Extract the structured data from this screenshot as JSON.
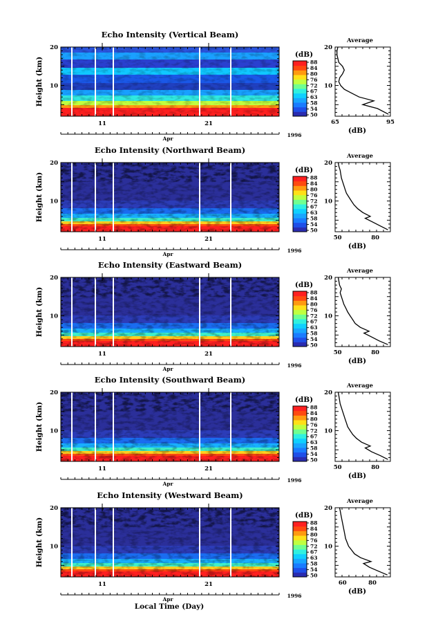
{
  "figure": {
    "xlabel": "Local Time (Day)",
    "month_label": "Apr",
    "year_label": "1996",
    "day_ticks": [
      "11",
      "21"
    ],
    "ylabel": "Height (km)",
    "height_ticks": [
      "20",
      "10"
    ],
    "colorbar_unit": "(dB)",
    "average_title": "Average",
    "average_xlabel": "(dB)"
  },
  "chart_data": [
    {
      "type": "heatmap",
      "title": "Echo Intensity (Vertical Beam)",
      "ylabel": "Height (km)",
      "xlabel": "Local Time (Day)",
      "ylim": [
        2,
        20
      ],
      "colorbar": {
        "label": "(dB)",
        "ticks": [
          50,
          54,
          58,
          63,
          67,
          72,
          76,
          80,
          84,
          88
        ]
      },
      "average_profile": {
        "type": "line",
        "title": "Average",
        "xlabel": "(dB)",
        "xticks": [
          "65",
          "95"
        ],
        "xlim": [
          65,
          95
        ],
        "height": [
          2.5,
          4,
          5,
          6,
          7,
          8,
          9,
          10,
          11,
          12,
          13,
          14,
          15,
          16,
          17,
          18,
          19,
          20
        ],
        "value": [
          94,
          88,
          80,
          86,
          78,
          74,
          70,
          68,
          67,
          67.5,
          69,
          70,
          69,
          67,
          66.5,
          66,
          66,
          66.5
        ]
      }
    },
    {
      "type": "heatmap",
      "title": "Echo Intensity (Northward Beam)",
      "ylabel": "Height (km)",
      "xlabel": "Local Time (Day)",
      "ylim": [
        2,
        20
      ],
      "colorbar": {
        "label": "(dB)",
        "ticks": [
          50,
          54,
          58,
          63,
          67,
          72,
          76,
          80,
          84,
          88
        ]
      },
      "average_profile": {
        "type": "line",
        "title": "Average",
        "xlabel": "(dB)",
        "xticks": [
          "50",
          "80"
        ],
        "xlim": [
          48,
          92
        ],
        "height": [
          2.5,
          3.5,
          4.5,
          5.5,
          6,
          7,
          8,
          9,
          10,
          11,
          12,
          13,
          14,
          15,
          16,
          17,
          18,
          19,
          20
        ],
        "value": [
          90,
          84,
          78,
          72,
          76,
          70,
          66,
          63,
          61,
          59,
          57,
          56,
          55,
          54,
          53,
          52.5,
          52,
          51,
          50.5
        ]
      }
    },
    {
      "type": "heatmap",
      "title": "Echo Intensity (Eastward Beam)",
      "ylabel": "Height (km)",
      "xlabel": "Local Time (Day)",
      "ylim": [
        2,
        20
      ],
      "colorbar": {
        "label": "(dB)",
        "ticks": [
          50,
          54,
          58,
          63,
          67,
          72,
          76,
          80,
          84,
          88
        ]
      },
      "average_profile": {
        "type": "line",
        "title": "Average",
        "xlabel": "(dB)",
        "xticks": [
          "50",
          "80"
        ],
        "xlim": [
          48,
          92
        ],
        "height": [
          2.5,
          3.5,
          4.5,
          5.5,
          6,
          7,
          8,
          9,
          10,
          11,
          12,
          13,
          14,
          15,
          16,
          17,
          18,
          19,
          20
        ],
        "value": [
          90,
          83,
          77,
          71,
          75,
          68,
          64,
          62,
          60,
          58,
          56.5,
          55,
          54,
          53,
          52,
          53,
          51.5,
          51,
          50.5
        ]
      }
    },
    {
      "type": "heatmap",
      "title": "Echo Intensity (Southward Beam)",
      "ylabel": "Height (km)",
      "xlabel": "Local Time (Day)",
      "ylim": [
        2,
        20
      ],
      "colorbar": {
        "label": "(dB)",
        "ticks": [
          50,
          54,
          58,
          63,
          67,
          72,
          76,
          80,
          84,
          88
        ]
      },
      "average_profile": {
        "type": "line",
        "title": "Average",
        "xlabel": "(dB)",
        "xticks": [
          "50",
          "80"
        ],
        "xlim": [
          48,
          92
        ],
        "height": [
          2.5,
          3.5,
          4.5,
          5.5,
          6,
          7,
          8,
          9,
          10,
          11,
          12,
          13,
          14,
          15,
          16,
          17,
          18,
          19,
          20
        ],
        "value": [
          90,
          84,
          77,
          72,
          76,
          69,
          65,
          62,
          60,
          58,
          57,
          56,
          55,
          54,
          53,
          52,
          51.5,
          51,
          50.5
        ]
      }
    },
    {
      "type": "heatmap",
      "title": "Echo Intensity (Westward Beam)",
      "ylabel": "Height (km)",
      "xlabel": "Local Time (Day)",
      "ylim": [
        2,
        20
      ],
      "colorbar": {
        "label": "(dB)",
        "ticks": [
          50,
          54,
          58,
          63,
          67,
          72,
          76,
          80,
          84,
          88
        ]
      },
      "average_profile": {
        "type": "line",
        "title": "Average",
        "xlabel": "(dB)",
        "xticks": [
          "60",
          "80"
        ],
        "xlim": [
          55,
          92
        ],
        "height": [
          2.5,
          3.5,
          4.5,
          5.5,
          6,
          7,
          8,
          9,
          10,
          11,
          12,
          13,
          14,
          15,
          16,
          17,
          18,
          19,
          20
        ],
        "value": [
          90,
          84,
          78,
          74,
          79,
          72,
          68,
          66,
          64,
          63,
          62,
          61.5,
          61,
          60.5,
          60,
          59.5,
          59,
          58.5,
          58
        ]
      }
    }
  ]
}
